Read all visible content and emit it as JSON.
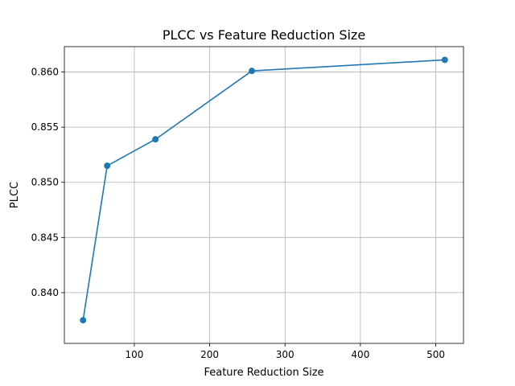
{
  "chart_data": {
    "type": "line",
    "title": "PLCC vs Feature Reduction Size",
    "xlabel": "Feature Reduction Size",
    "ylabel": "PLCC",
    "xlim": [
      7.2,
      536.8
    ],
    "ylim": [
      0.8354,
      0.8623
    ],
    "xticks": [
      100,
      200,
      300,
      400,
      500
    ],
    "yticks": [
      0.84,
      0.845,
      0.85,
      0.855,
      0.86
    ],
    "ytick_labels": [
      "0.840",
      "0.845",
      "0.850",
      "0.855",
      "0.860"
    ],
    "grid": true,
    "series": [
      {
        "color": "#1f77b4",
        "marker": "circle",
        "points": [
          {
            "x": 32,
            "y": 0.8375
          },
          {
            "x": 64,
            "y": 0.8515
          },
          {
            "x": 128,
            "y": 0.8539
          },
          {
            "x": 256,
            "y": 0.8601
          },
          {
            "x": 512,
            "y": 0.8611
          }
        ]
      }
    ]
  }
}
